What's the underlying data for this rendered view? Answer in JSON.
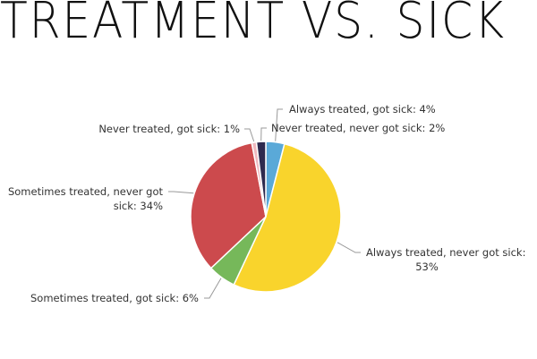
{
  "title": "TREATMENT VS. SICK",
  "chart_data": {
    "type": "pie",
    "slices": [
      {
        "label": "Always treated, got sick",
        "value": 4,
        "text": "Always treated, got sick: 4%",
        "color": "#5aa9d8"
      },
      {
        "label": "Always treated, never got sick",
        "value": 53,
        "text": "Always treated, never got sick: 53%",
        "color": "#f9d42c"
      },
      {
        "label": "Sometimes treated, got sick",
        "value": 6,
        "text": "Sometimes treated, got sick: 6%",
        "color": "#76b85a"
      },
      {
        "label": "Sometimes treated, never got sick",
        "value": 34,
        "text": "Sometimes treated, never got sick: 34%",
        "color": "#cc4a4d"
      },
      {
        "label": "Never treated, got sick",
        "value": 1,
        "text": "Never treated, got sick: 1%",
        "color": "#eeb9bf"
      },
      {
        "label": "Never treated, never got sick",
        "value": 2,
        "text": "Never treated, never got sick: 2%",
        "color": "#2e2a4f"
      }
    ]
  }
}
